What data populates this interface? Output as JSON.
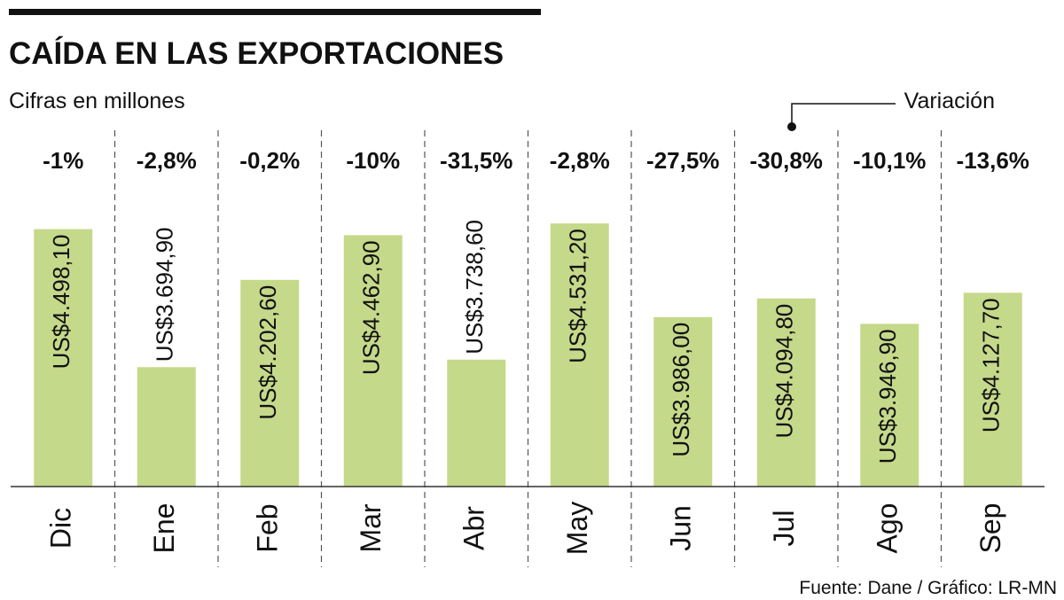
{
  "chart_data": {
    "type": "bar",
    "title": "CAÍDA EN LAS EXPORTACIONES",
    "subtitle": "Cifras en millones",
    "source": "Fuente: Dane / Gráfico: LR-MN",
    "categories": [
      "Dic",
      "Ene",
      "Feb",
      "Mar",
      "Abr",
      "May",
      "Jun",
      "Jul",
      "Ago",
      "Sep"
    ],
    "values": [
      4498.1,
      3694.9,
      4202.6,
      4462.9,
      3738.6,
      4531.2,
      3986.0,
      4094.8,
      3946.9,
      4127.7
    ],
    "value_labels": [
      "US$4.498,10",
      "US$3.694,90",
      "US$4.202,60",
      "US$4.462,90",
      "US$3.738,60",
      "US$4.531,20",
      "US$3.986,00",
      "US$4.094,80",
      "US$3.946,90",
      "US$4.127,70"
    ],
    "color": "#c5d98a",
    "ylim": [
      3000,
      4800
    ],
    "variation": {
      "name": "Variación",
      "values": [
        -1,
        -2.8,
        -0.2,
        -10,
        -31.5,
        -2.8,
        -27.5,
        -30.8,
        -10.1,
        -13.6
      ],
      "value_labels": [
        "-1%",
        "-2,8%",
        "-0,2%",
        "-10%",
        "-31,5%",
        "-2,8%",
        "-27,5%",
        "-30,8%",
        "-10,1%",
        "-13,6%"
      ]
    }
  }
}
